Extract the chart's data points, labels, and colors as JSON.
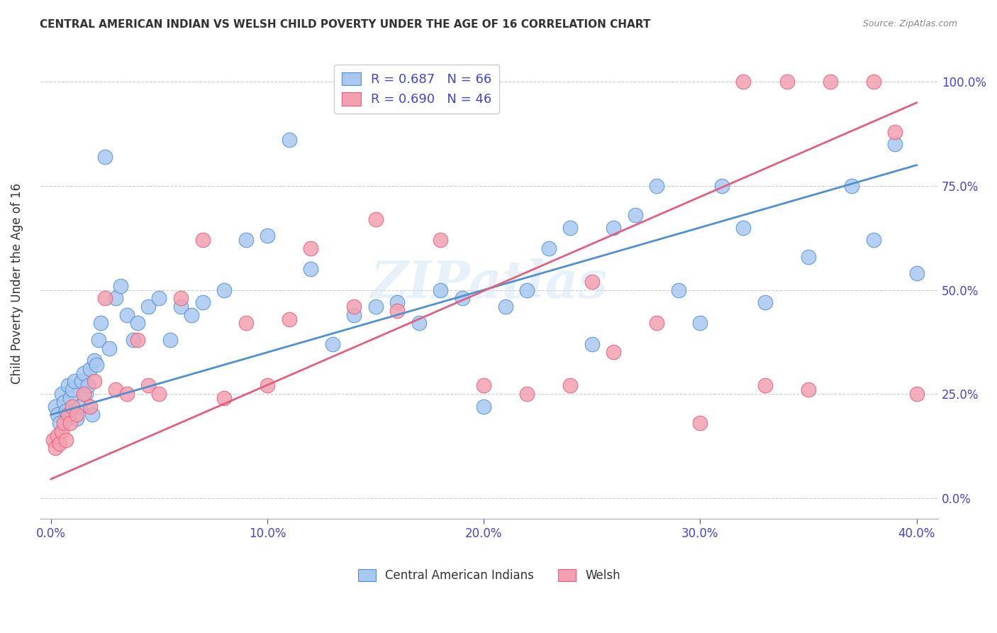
{
  "title": "CENTRAL AMERICAN INDIAN VS WELSH CHILD POVERTY UNDER THE AGE OF 16 CORRELATION CHART",
  "source": "Source: ZipAtlas.com",
  "xlabel_ticks": [
    "0.0%",
    "10.0%",
    "20.0%",
    "30.0%",
    "40.0%"
  ],
  "xlabel_tick_vals": [
    0.0,
    0.1,
    0.2,
    0.3,
    0.4
  ],
  "ylabel": "Child Poverty Under the Age of 16",
  "ylabel_ticks": [
    "0.0%",
    "25.0%",
    "50.0%",
    "75.0%",
    "100.0%"
  ],
  "ylabel_tick_vals": [
    0.0,
    0.25,
    0.5,
    0.75,
    1.0
  ],
  "xlim": [
    -0.005,
    0.41
  ],
  "ylim": [
    -0.05,
    1.08
  ],
  "blue_R": "R = 0.687",
  "blue_N": "N = 66",
  "pink_R": "R = 0.690",
  "pink_N": "N = 46",
  "blue_color": "#a8c8f0",
  "pink_color": "#f4a0b0",
  "blue_line_color": "#5090d0",
  "pink_line_color": "#e06080",
  "watermark": "ZIPatlas",
  "legend_label_blue": "Central American Indians",
  "legend_label_pink": "Welsh",
  "blue_points_x": [
    0.002,
    0.003,
    0.004,
    0.005,
    0.006,
    0.007,
    0.008,
    0.009,
    0.01,
    0.011,
    0.012,
    0.013,
    0.014,
    0.015,
    0.016,
    0.017,
    0.018,
    0.019,
    0.02,
    0.021,
    0.022,
    0.023,
    0.025,
    0.027,
    0.03,
    0.032,
    0.035,
    0.038,
    0.04,
    0.045,
    0.05,
    0.055,
    0.06,
    0.065,
    0.07,
    0.08,
    0.09,
    0.1,
    0.11,
    0.12,
    0.13,
    0.14,
    0.15,
    0.16,
    0.17,
    0.18,
    0.19,
    0.2,
    0.21,
    0.22,
    0.23,
    0.24,
    0.25,
    0.26,
    0.27,
    0.28,
    0.29,
    0.3,
    0.31,
    0.32,
    0.33,
    0.35,
    0.37,
    0.39,
    0.4,
    0.38
  ],
  "blue_points_y": [
    0.22,
    0.2,
    0.18,
    0.25,
    0.23,
    0.21,
    0.27,
    0.24,
    0.26,
    0.28,
    0.19,
    0.22,
    0.28,
    0.3,
    0.25,
    0.27,
    0.31,
    0.2,
    0.33,
    0.32,
    0.38,
    0.42,
    0.82,
    0.36,
    0.48,
    0.51,
    0.44,
    0.38,
    0.42,
    0.46,
    0.48,
    0.38,
    0.46,
    0.44,
    0.47,
    0.5,
    0.62,
    0.63,
    0.86,
    0.55,
    0.37,
    0.44,
    0.46,
    0.47,
    0.42,
    0.5,
    0.48,
    0.22,
    0.46,
    0.5,
    0.6,
    0.65,
    0.37,
    0.65,
    0.68,
    0.75,
    0.5,
    0.42,
    0.75,
    0.65,
    0.47,
    0.58,
    0.75,
    0.85,
    0.54,
    0.62
  ],
  "pink_points_x": [
    0.001,
    0.002,
    0.003,
    0.004,
    0.005,
    0.006,
    0.007,
    0.008,
    0.009,
    0.01,
    0.012,
    0.015,
    0.018,
    0.02,
    0.025,
    0.03,
    0.035,
    0.04,
    0.045,
    0.05,
    0.06,
    0.07,
    0.08,
    0.09,
    0.1,
    0.11,
    0.12,
    0.14,
    0.16,
    0.18,
    0.2,
    0.22,
    0.24,
    0.26,
    0.28,
    0.3,
    0.32,
    0.34,
    0.36,
    0.38,
    0.39,
    0.4,
    0.35,
    0.33,
    0.25,
    0.15
  ],
  "pink_points_y": [
    0.14,
    0.12,
    0.15,
    0.13,
    0.16,
    0.18,
    0.14,
    0.2,
    0.18,
    0.22,
    0.2,
    0.25,
    0.22,
    0.28,
    0.48,
    0.26,
    0.25,
    0.38,
    0.27,
    0.25,
    0.48,
    0.62,
    0.24,
    0.42,
    0.27,
    0.43,
    0.6,
    0.46,
    0.45,
    0.62,
    0.27,
    0.25,
    0.27,
    0.35,
    0.42,
    0.18,
    1.0,
    1.0,
    1.0,
    1.0,
    0.88,
    0.25,
    0.26,
    0.27,
    0.52,
    0.67
  ]
}
